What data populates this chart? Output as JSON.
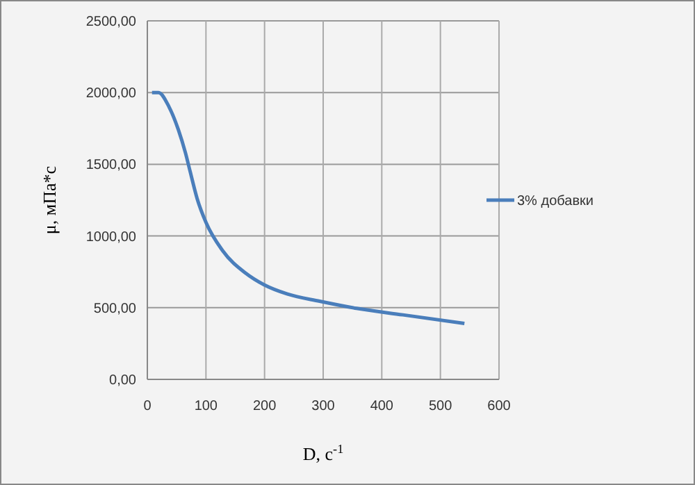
{
  "chart_data": {
    "type": "line",
    "xlabel": "D, с$^{-1}$",
    "ylabel": "μ, мПа*с",
    "xlim": [
      0,
      600
    ],
    "xticks": [
      0,
      100,
      200,
      300,
      400,
      500,
      600
    ],
    "ylim": [
      0,
      2500
    ],
    "yticks": [
      {
        "value": 0,
        "label": "0,00"
      },
      {
        "value": 500,
        "label": "500,00"
      },
      {
        "value": 1000,
        "label": "1000,00"
      },
      {
        "value": 1500,
        "label": "1500,00"
      },
      {
        "value": 2000,
        "label": "2000,00"
      },
      {
        "value": 2500,
        "label": "2500,00"
      }
    ],
    "grid": true,
    "legend": "right",
    "marker": "none",
    "line_style": "solid",
    "series": [
      {
        "name": "3% добавки",
        "color": "#4a7ebb",
        "x": [
          8,
          19,
          37,
          53,
          65,
          73,
          85,
          100,
          128,
          168,
          199,
          239,
          294,
          357,
          436,
          541
        ],
        "values": [
          2000,
          2000,
          1900,
          1740,
          1580,
          1450,
          1260,
          1095,
          900,
          740,
          660,
          595,
          545,
          495,
          450,
          390
        ]
      }
    ]
  }
}
